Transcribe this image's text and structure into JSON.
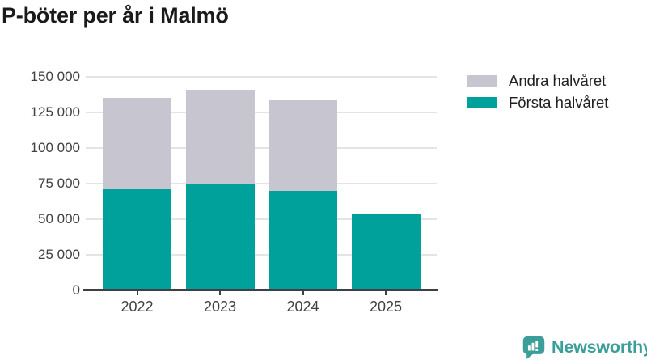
{
  "title": "P-böter per år i Malmö",
  "chart_data": {
    "type": "bar",
    "stacked": true,
    "title": "P-böter per år i Malmö",
    "categories": [
      "2022",
      "2023",
      "2024",
      "2025"
    ],
    "series": [
      {
        "name": "Första halvåret",
        "color": "#00A19A",
        "values": [
          71000,
          74500,
          70000,
          54000
        ]
      },
      {
        "name": "Andra halvåret",
        "color": "#C7C6D0",
        "values": [
          64000,
          66500,
          63500,
          0
        ]
      }
    ],
    "totals": [
      135000,
      141000,
      133500,
      54000
    ],
    "ylim": [
      0,
      150000
    ],
    "ytick_step": 25000,
    "ytick_labels": [
      "0",
      "25 000",
      "50 000",
      "75 000",
      "100 000",
      "125 000",
      "150 000"
    ],
    "xlabel": "",
    "ylabel": "",
    "grid": true,
    "legend_position": "top-right",
    "legend": [
      {
        "label": "Andra halvåret",
        "color": "#C7C6D0"
      },
      {
        "label": "Första halvåret",
        "color": "#00A19A"
      }
    ]
  },
  "branding": {
    "name": "Newsworthy",
    "color": "#3B9E99"
  },
  "colors": {
    "background": "#FFFFFF",
    "grid": "#E4E4E4",
    "axis": "#3F4045",
    "title_text": "#1A1A1A",
    "axis_text": "#404040",
    "legend_text": "#202020"
  }
}
